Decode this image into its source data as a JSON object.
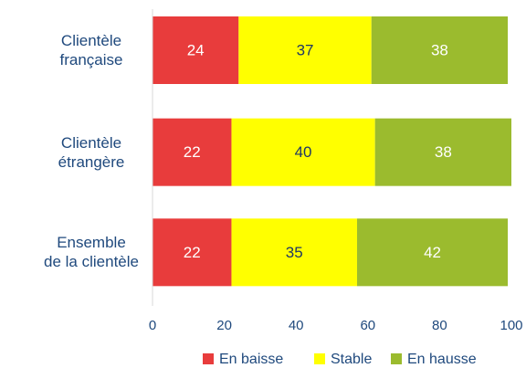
{
  "chart_data": {
    "type": "stacked-bar-horizontal",
    "categories": [
      "Clientèle\nfrançaise",
      "Clientèle\nétrangère",
      "Ensemble\nde la clientèle"
    ],
    "series": [
      {
        "name": "En baisse",
        "color": "#e83c3c",
        "values": [
          24,
          22,
          22
        ]
      },
      {
        "name": "Stable",
        "color": "#ffff00",
        "values": [
          37,
          40,
          35
        ]
      },
      {
        "name": "En hausse",
        "color": "#9bbb2e",
        "values": [
          38,
          38,
          42
        ]
      }
    ],
    "xlim": [
      0,
      100
    ],
    "xticks": [
      0,
      20,
      40,
      60,
      80,
      100
    ],
    "legend": "bottom"
  }
}
